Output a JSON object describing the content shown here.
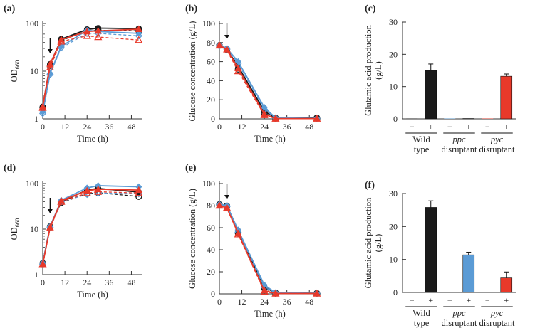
{
  "colors": {
    "black": "#1a1a1a",
    "blue": "#5b9bd5",
    "red": "#e8392a",
    "axis": "#333333"
  },
  "chart_data": [
    {
      "panel": "(a)",
      "type": "line",
      "yscale": "log",
      "xlabel": "Time (h)",
      "ylabel": "OD",
      "ylabel_sub": "660",
      "xlim": [
        0,
        54
      ],
      "ylim": [
        1,
        100
      ],
      "xticks": [
        0,
        12,
        24,
        36,
        48
      ],
      "xtick_labels": [
        "0",
        "12",
        "24",
        "36",
        "48"
      ],
      "yticks": [
        1,
        10,
        100
      ],
      "ytick_labels": [
        "1",
        "10",
        "100"
      ],
      "arrow_x": 4,
      "series": [
        {
          "name": "wild type (solid)",
          "color": "black",
          "dash": false,
          "marker": "circle",
          "x": [
            0,
            4,
            10,
            24,
            30,
            52
          ],
          "y": [
            1.8,
            14,
            47,
            75,
            80,
            78
          ]
        },
        {
          "name": "wild type (dashed)",
          "color": "black",
          "dash": true,
          "marker": "circle-open",
          "x": [
            0,
            4,
            10,
            24,
            30,
            52
          ],
          "y": [
            1.7,
            13,
            44,
            70,
            72,
            70
          ]
        },
        {
          "name": "ppc (solid)",
          "color": "blue",
          "dash": false,
          "marker": "diamond",
          "x": [
            0,
            4,
            10,
            24,
            30,
            52
          ],
          "y": [
            1.4,
            9,
            33,
            72,
            68,
            62
          ]
        },
        {
          "name": "ppc (dashed)",
          "color": "blue",
          "dash": true,
          "marker": "diamond-open",
          "x": [
            0,
            4,
            10,
            24,
            30,
            52
          ],
          "y": [
            1.3,
            8.5,
            31,
            62,
            62,
            55
          ]
        },
        {
          "name": "pyc (solid)",
          "color": "red",
          "dash": false,
          "marker": "triangle",
          "x": [
            0,
            4,
            10,
            24,
            30,
            52
          ],
          "y": [
            1.8,
            14,
            46,
            68,
            70,
            76
          ]
        },
        {
          "name": "pyc (dashed)",
          "color": "red",
          "dash": true,
          "marker": "triangle-open",
          "x": [
            0,
            4,
            10,
            24,
            30,
            52
          ],
          "y": [
            1.7,
            12,
            42,
            55,
            52,
            45
          ]
        }
      ]
    },
    {
      "panel": "(b)",
      "type": "line",
      "yscale": "linear",
      "xlabel": "Time (h)",
      "ylabel": "Glucose concentration (g/L)",
      "xlim": [
        0,
        54
      ],
      "ylim": [
        0,
        100
      ],
      "xticks": [
        0,
        12,
        24,
        36,
        48
      ],
      "xtick_labels": [
        "0",
        "12",
        "24",
        "36",
        "48"
      ],
      "yticks": [
        0,
        20,
        40,
        60,
        80,
        100
      ],
      "ytick_labels": [
        "0",
        "20",
        "40",
        "60",
        "80",
        "100"
      ],
      "arrow_x": 4,
      "series": [
        {
          "name": "wild type (solid)",
          "color": "black",
          "dash": false,
          "marker": "circle",
          "x": [
            0,
            4,
            10,
            24,
            30,
            52
          ],
          "y": [
            77,
            73,
            55,
            8,
            1,
            1
          ]
        },
        {
          "name": "wild type (dashed)",
          "color": "black",
          "dash": true,
          "marker": "circle-open",
          "x": [
            0,
            4,
            10,
            24,
            30,
            52
          ],
          "y": [
            77,
            73,
            52,
            6,
            0.5,
            1
          ]
        },
        {
          "name": "ppc (solid)",
          "color": "blue",
          "dash": false,
          "marker": "diamond",
          "x": [
            0,
            4,
            10,
            24,
            30,
            52
          ],
          "y": [
            77,
            74,
            60,
            12,
            1,
            0.5
          ]
        },
        {
          "name": "ppc (dashed)",
          "color": "blue",
          "dash": true,
          "marker": "diamond-open",
          "x": [
            0,
            4,
            10,
            24,
            30,
            52
          ],
          "y": [
            77,
            73,
            58,
            10,
            0.8,
            0.5
          ]
        },
        {
          "name": "pyc (solid)",
          "color": "red",
          "dash": false,
          "marker": "triangle",
          "x": [
            0,
            4,
            10,
            24,
            30,
            52
          ],
          "y": [
            77,
            73,
            53,
            5,
            0.3,
            0.3
          ]
        },
        {
          "name": "pyc (dashed)",
          "color": "red",
          "dash": true,
          "marker": "triangle-open",
          "x": [
            0,
            4,
            10,
            24,
            30,
            52
          ],
          "y": [
            77,
            72,
            50,
            4,
            0.3,
            0.3
          ]
        }
      ]
    },
    {
      "panel": "(c)",
      "type": "bar",
      "ylabel": "Glutamic acid production",
      "ylabel2": "(g/L)",
      "ylim": [
        0,
        30
      ],
      "yticks": [
        0,
        10,
        20,
        30
      ],
      "ytick_labels": [
        "0",
        "10",
        "20",
        "30"
      ],
      "groups": [
        {
          "line1": "Wild",
          "line2": "type",
          "italic": false,
          "color": "black",
          "minus": 0.1,
          "plus": 15.0,
          "err": 2.0
        },
        {
          "line1": "ppc",
          "line2": "disruptant",
          "italic": true,
          "color": "blue",
          "minus": 0.1,
          "plus": 0.1,
          "err": 0
        },
        {
          "line1": "pyc",
          "line2": "disruptant",
          "italic": true,
          "color": "red",
          "minus": 0.1,
          "plus": 13.2,
          "err": 0.7
        }
      ],
      "sign_minus": "−",
      "sign_plus": "+"
    },
    {
      "panel": "(d)",
      "type": "line",
      "yscale": "log",
      "xlabel": "Time (h)",
      "ylabel": "OD",
      "ylabel_sub": "660",
      "xlim": [
        0,
        54
      ],
      "ylim": [
        1,
        100
      ],
      "xticks": [
        0,
        12,
        24,
        36,
        48
      ],
      "xtick_labels": [
        "0",
        "12",
        "24",
        "36",
        "48"
      ],
      "yticks": [
        1,
        10,
        100
      ],
      "ytick_labels": [
        "1",
        "10",
        "100"
      ],
      "arrow_x": 4,
      "series": [
        {
          "name": "wild type (solid)",
          "color": "black",
          "dash": false,
          "marker": "circle",
          "x": [
            0,
            4,
            10,
            24,
            30,
            52
          ],
          "y": [
            1.8,
            11.5,
            40,
            72,
            78,
            65
          ]
        },
        {
          "name": "wild type (dashed)",
          "color": "black",
          "dash": true,
          "marker": "circle-open",
          "x": [
            0,
            4,
            10,
            24,
            30,
            52
          ],
          "y": [
            1.7,
            11,
            38,
            60,
            63,
            52
          ]
        },
        {
          "name": "ppc (solid)",
          "color": "blue",
          "dash": false,
          "marker": "diamond",
          "x": [
            0,
            4,
            10,
            24,
            30,
            52
          ],
          "y": [
            1.8,
            11.5,
            43,
            80,
            90,
            85
          ]
        },
        {
          "name": "ppc (dashed)",
          "color": "blue",
          "dash": true,
          "marker": "diamond-open",
          "x": [
            0,
            4,
            10,
            24,
            30,
            52
          ],
          "y": [
            1.7,
            11,
            40,
            58,
            62,
            60
          ]
        },
        {
          "name": "pyc (solid)",
          "color": "red",
          "dash": false,
          "marker": "triangle",
          "x": [
            0,
            4,
            10,
            24,
            30,
            52
          ],
          "y": [
            1.7,
            11,
            42,
            70,
            75,
            72
          ]
        },
        {
          "name": "pyc (dashed)",
          "color": "red",
          "dash": true,
          "marker": "triangle-open",
          "x": [
            0,
            4,
            10,
            24,
            30,
            52
          ],
          "y": [
            1.7,
            10.5,
            40,
            62,
            66,
            62
          ]
        }
      ]
    },
    {
      "panel": "(e)",
      "type": "line",
      "yscale": "linear",
      "xlabel": "Time (h)",
      "ylabel": "Glucose concentration (g/L)",
      "xlim": [
        0,
        54
      ],
      "ylim": [
        0,
        100
      ],
      "xticks": [
        0,
        12,
        24,
        36,
        48
      ],
      "xtick_labels": [
        "0",
        "12",
        "24",
        "36",
        "48"
      ],
      "yticks": [
        0,
        20,
        40,
        60,
        80,
        100
      ],
      "ytick_labels": [
        "0",
        "20",
        "40",
        "60",
        "80",
        "100"
      ],
      "arrow_x": 4,
      "series": [
        {
          "name": "wild type (solid)",
          "color": "black",
          "dash": false,
          "marker": "circle",
          "x": [
            0,
            4,
            10,
            24,
            30,
            52
          ],
          "y": [
            81,
            80,
            57,
            6,
            1,
            0.5
          ]
        },
        {
          "name": "wild type (dashed)",
          "color": "black",
          "dash": true,
          "marker": "circle-open",
          "x": [
            0,
            4,
            10,
            24,
            30,
            52
          ],
          "y": [
            81,
            79,
            55,
            5,
            0.5,
            0.5
          ]
        },
        {
          "name": "ppc (solid)",
          "color": "blue",
          "dash": false,
          "marker": "diamond",
          "x": [
            0,
            4,
            10,
            24,
            30,
            52
          ],
          "y": [
            81,
            80,
            58,
            8,
            1,
            0.5
          ]
        },
        {
          "name": "ppc (dashed)",
          "color": "blue",
          "dash": true,
          "marker": "diamond-open",
          "x": [
            0,
            4,
            10,
            24,
            30,
            52
          ],
          "y": [
            81,
            79,
            56,
            6,
            0.8,
            0.5
          ]
        },
        {
          "name": "pyc (solid)",
          "color": "red",
          "dash": false,
          "marker": "triangle",
          "x": [
            0,
            4,
            10,
            24,
            30,
            52
          ],
          "y": [
            80,
            78,
            55,
            3,
            0.3,
            0.3
          ]
        },
        {
          "name": "pyc (dashed)",
          "color": "red",
          "dash": true,
          "marker": "triangle-open",
          "x": [
            0,
            4,
            10,
            24,
            30,
            52
          ],
          "y": [
            80,
            78,
            54,
            2,
            0.3,
            0.3
          ]
        }
      ]
    },
    {
      "panel": "(f)",
      "type": "bar",
      "ylabel": "Glutamic acid production",
      "ylabel2": "(g/L)",
      "ylim": [
        0,
        30
      ],
      "yticks": [
        0,
        10,
        20,
        30
      ],
      "ytick_labels": [
        "0",
        "10",
        "20",
        "30"
      ],
      "groups": [
        {
          "line1": "Wild",
          "line2": "type",
          "italic": false,
          "color": "black",
          "minus": 0.1,
          "plus": 25.8,
          "err": 2.0
        },
        {
          "line1": "ppc",
          "line2": "disruptant",
          "italic": true,
          "color": "blue",
          "minus": 0.1,
          "plus": 11.4,
          "err": 0.8
        },
        {
          "line1": "pyc",
          "line2": "disruptant",
          "italic": true,
          "color": "red",
          "minus": 0.1,
          "plus": 4.4,
          "err": 1.8
        }
      ],
      "sign_minus": "−",
      "sign_plus": "+"
    }
  ]
}
